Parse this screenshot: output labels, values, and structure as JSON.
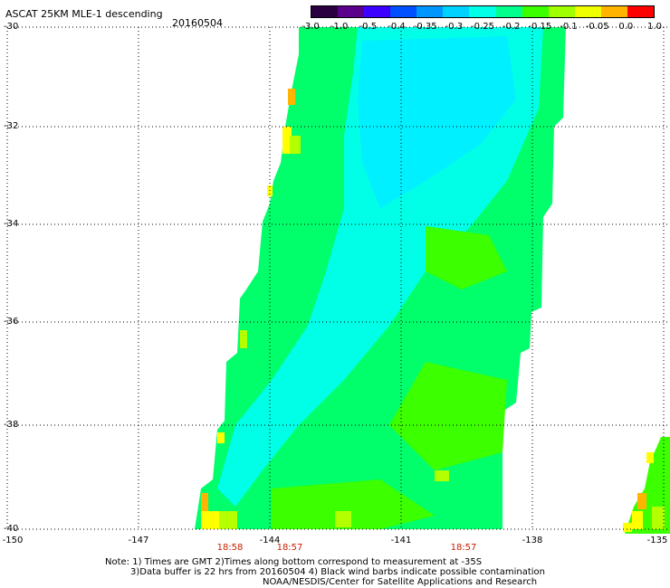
{
  "title": "ASCAT 25KM MLE-1 descending",
  "date": "20160504",
  "colorbar": {
    "labels": [
      "-3.0",
      "-1.0",
      "-0.5",
      "-0.4",
      "-0.35",
      "-0.3",
      "-0.25",
      "-0.2",
      "-0.15",
      "-0.1",
      "-0.05",
      "0.0",
      "1.0"
    ],
    "colors": [
      "#2a0040",
      "#5a008c",
      "#3c00ff",
      "#0050ff",
      "#0096ff",
      "#00d2ff",
      "#00ffe6",
      "#00ff8c",
      "#3cff00",
      "#a0ff00",
      "#f0ff00",
      "#ffb400",
      "#ff0000"
    ]
  },
  "lat_labels": [
    "-30",
    "-32",
    "-34",
    "-36",
    "-38",
    "-40"
  ],
  "lon_labels": [
    "-150",
    "-147",
    "-144",
    "-141",
    "-138",
    "-135"
  ],
  "time_labels": [
    "18:58",
    "18:57",
    "18:57"
  ],
  "notes": {
    "line1": "Note: 1) Times are GMT 2)Times along bottom correspond to measurement at -35S",
    "line2": "3)Data buffer is 22 hrs from 20160504 4) Black wind barbs indicate possible contamination",
    "line3": "NOAA/NESDIS/Center for Satellite Applications and Research"
  },
  "swath_colors": {
    "cyan": "#00ffe6",
    "lightcyan": "#00f0ff",
    "green": "#00ff6a",
    "lime": "#3cff00",
    "yellowgreen": "#b4ff00",
    "yellow": "#ffff00",
    "orange": "#ffb400"
  }
}
